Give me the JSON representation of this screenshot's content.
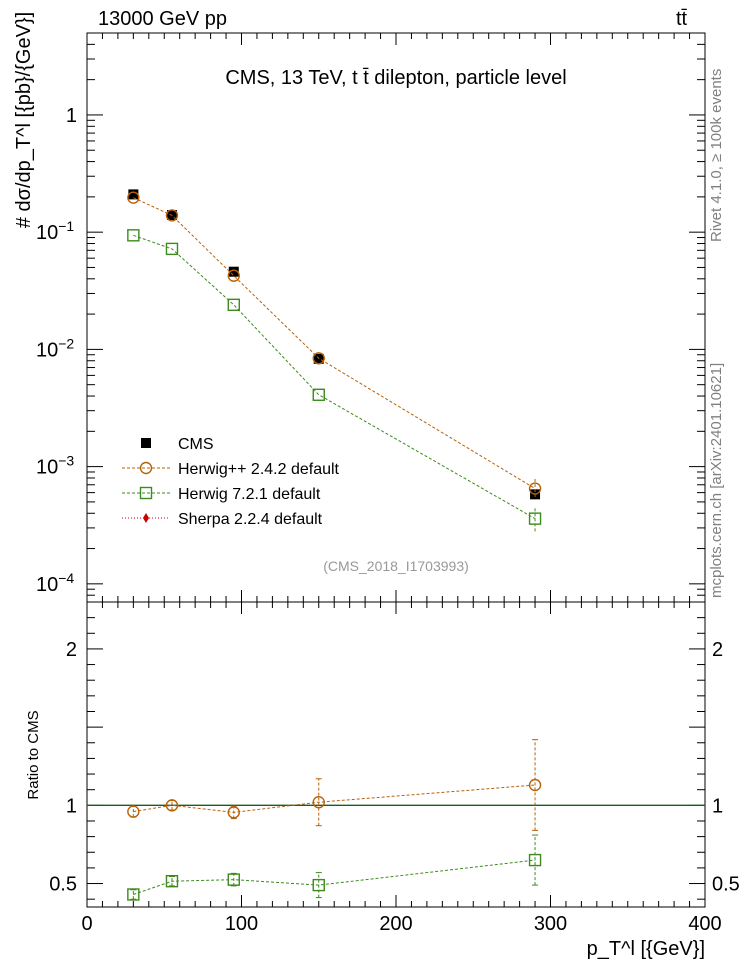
{
  "header": {
    "energy_label": "13000 GeV pp",
    "process_label": "tt̄"
  },
  "side_labels": {
    "rivet": "Rivet 4.1.0, ≥ 100k events",
    "mcplots": "mcplots.cern.ch [arXiv:2401.10621]"
  },
  "chart_data": {
    "type": "scatter",
    "title": "CMS, 13 TeV, t t̄ dilepton, particle level",
    "analysis_label": "(CMS_2018_I1703993)",
    "xlabel": "p_T^l [{GeV}]",
    "ylabel": "# dσ/dp_T^l [{pb}/{GeV}]",
    "ratio_ylabel": "Ratio to CMS",
    "xlim": [
      0,
      400
    ],
    "ylim": [
      7e-05,
      5
    ],
    "ratio_ylim": [
      0.35,
      2.3
    ],
    "x_ticks": [
      "0",
      "100",
      "200",
      "300",
      "400"
    ],
    "y_ticks": [
      {
        "value": 1,
        "label": "1"
      },
      {
        "value": 0.1,
        "label": "10",
        "exp": "−1"
      },
      {
        "value": 0.01,
        "label": "10",
        "exp": "−2"
      },
      {
        "value": 0.001,
        "label": "10",
        "exp": "−3"
      },
      {
        "value": 0.0001,
        "label": "10",
        "exp": "−4"
      }
    ],
    "ratio_ticks": [
      {
        "value": 0.5,
        "label": "0.5"
      },
      {
        "value": 1,
        "label": "1"
      },
      {
        "value": 2,
        "label": "2"
      }
    ],
    "x": [
      30,
      55,
      95,
      150,
      290
    ],
    "series": [
      {
        "name": "CMS",
        "color": "#000000",
        "marker": "square-filled",
        "values": [
          0.21,
          0.14,
          0.046,
          0.0083,
          0.00058
        ],
        "ratio": [
          1,
          1,
          1,
          1,
          1
        ]
      },
      {
        "name": "Herwig++ 2.4.2 default",
        "color": "#b8610b",
        "marker": "circle-open",
        "values": [
          0.197,
          0.139,
          0.0425,
          0.0084,
          0.00065
        ],
        "ratio": [
          0.96,
          1.0,
          0.955,
          1.02,
          1.13
        ],
        "ratio_err": [
          0.035,
          0.03,
          0.04,
          0.15,
          0.29
        ]
      },
      {
        "name": "Herwig 7.2.1 default",
        "color": "#3c8b1c",
        "marker": "square-open",
        "values": [
          0.094,
          0.072,
          0.024,
          0.0041,
          0.00036
        ],
        "ratio": [
          0.43,
          0.515,
          0.525,
          0.49,
          0.65
        ],
        "ratio_err": [
          0.03,
          0.03,
          0.04,
          0.08,
          0.16
        ]
      },
      {
        "name": "Sherpa 2.2.4 default",
        "color": "#cc0000",
        "marker": "diamond-filled",
        "values": [],
        "ratio": []
      }
    ]
  }
}
